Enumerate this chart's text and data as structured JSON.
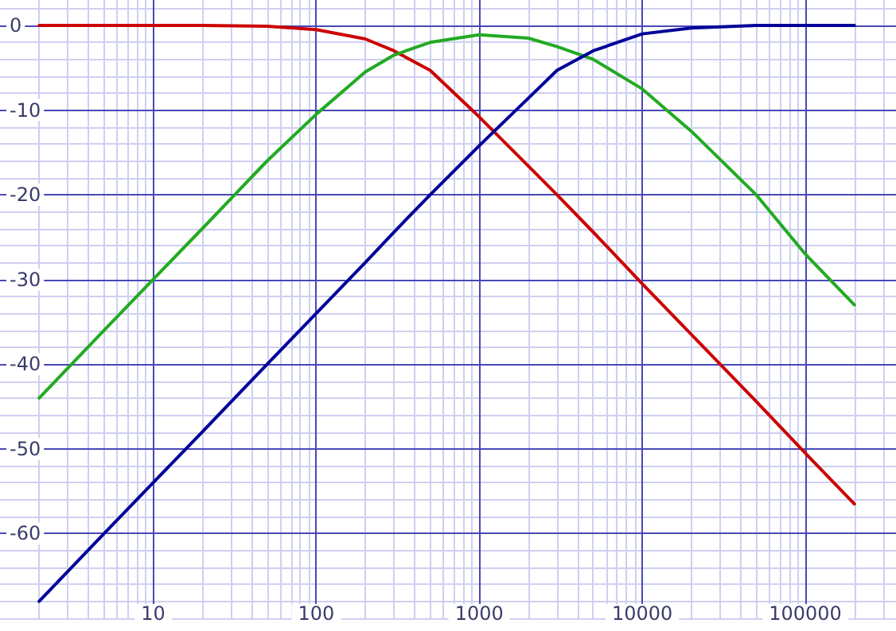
{
  "chart_data": {
    "type": "line",
    "log": "x",
    "x": [
      2,
      5,
      10,
      20,
      50,
      100,
      200,
      300,
      500,
      1000,
      2000,
      3000,
      5000,
      10000,
      20000,
      50000,
      100000,
      200000
    ],
    "series": [
      {
        "color": "#cc0000",
        "values": [
          0,
          0,
          0,
          0,
          -0.1,
          -0.5,
          -1.6,
          -3,
          -5.3,
          -10.8,
          -16.6,
          -20,
          -24.4,
          -30.5,
          -36.5,
          -44.4,
          -50.5,
          -56.5
        ]
      },
      {
        "color": "#22aa22",
        "values": [
          -44,
          -36,
          -30,
          -24,
          -16,
          -10.5,
          -5.5,
          -3.5,
          -2,
          -1.1,
          -1.5,
          -2.5,
          -4,
          -7.5,
          -12.5,
          -20,
          -27,
          -33
        ]
      },
      {
        "color": "#000099",
        "values": [
          -68,
          -60,
          -54,
          -48,
          -40,
          -34,
          -28,
          -24.4,
          -20,
          -14.2,
          -8.6,
          -5.3,
          -3,
          -1,
          -0.3,
          0,
          0,
          0
        ]
      }
    ],
    "xlim": [
      1.15,
      360000
    ],
    "xticks": [
      10,
      100,
      1000,
      10000,
      100000
    ],
    "ylim": [
      -70,
      3
    ],
    "yticks": [
      -60,
      -50,
      -40,
      -30,
      -20,
      -10,
      0
    ],
    "grid": true,
    "marker": "none",
    "line_style": "solid"
  }
}
